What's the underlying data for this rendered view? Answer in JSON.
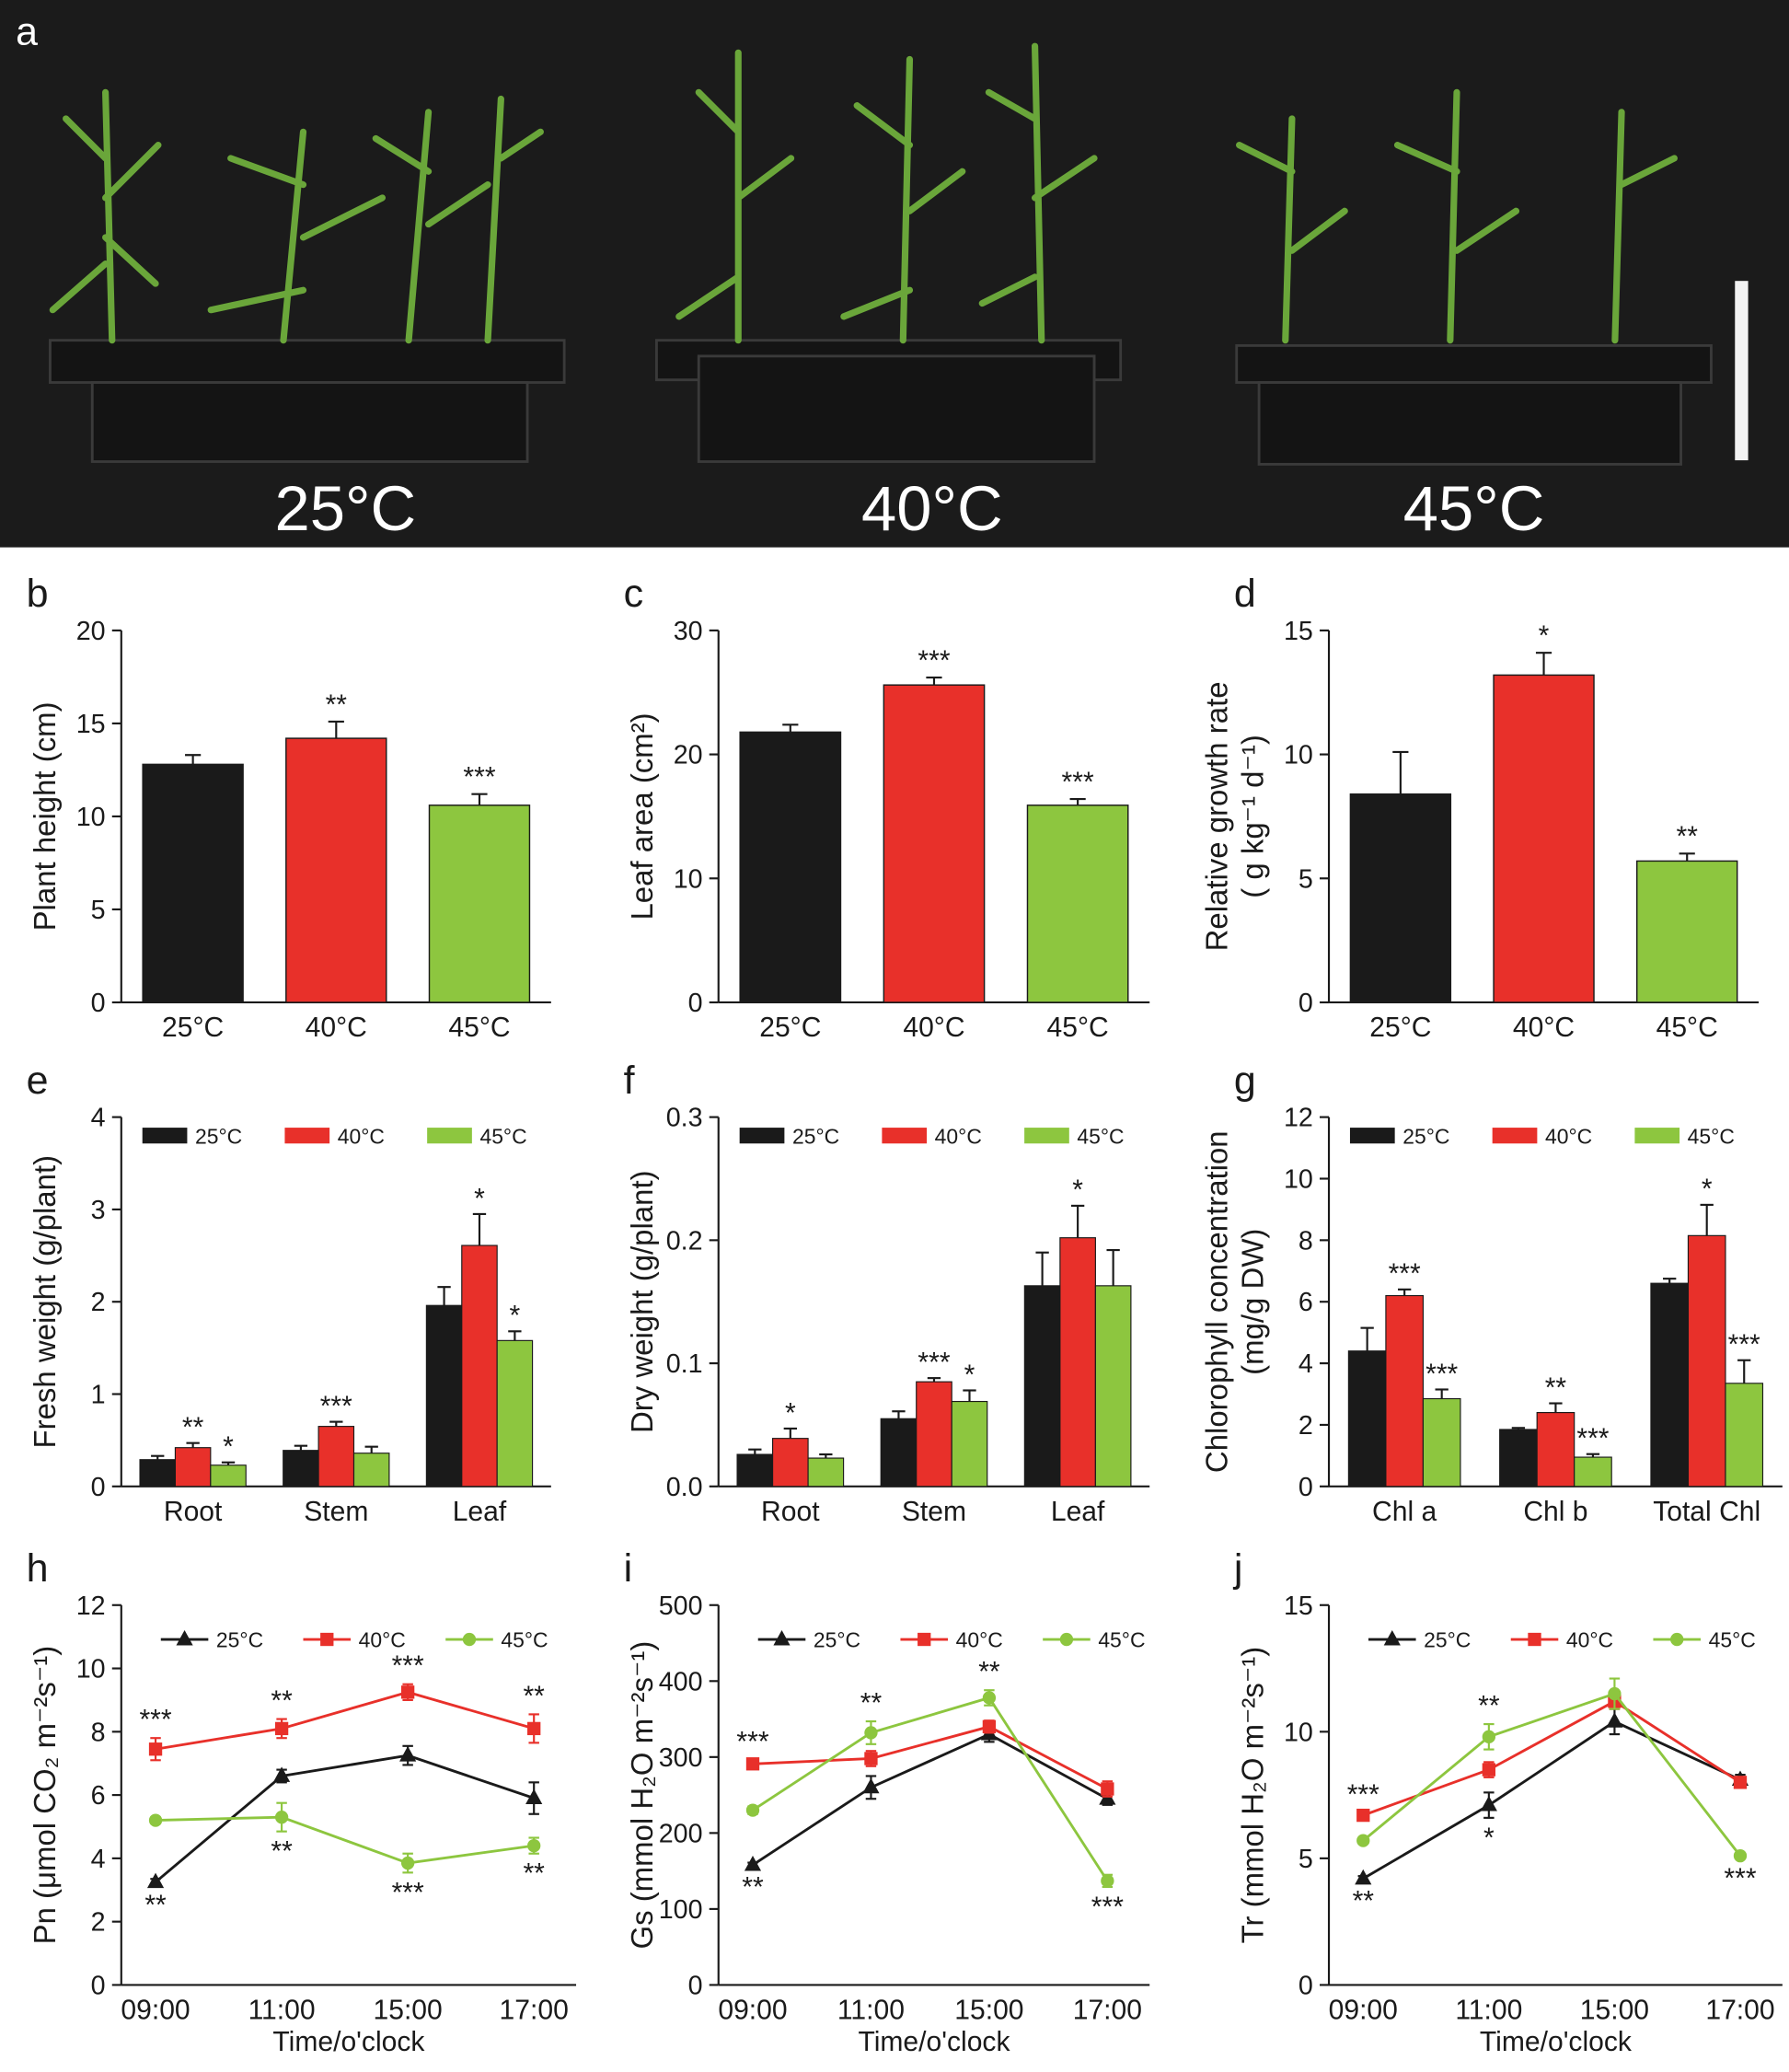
{
  "photo": {
    "label": "a",
    "labels": [
      "25°C",
      "40°C",
      "45°C"
    ]
  },
  "chart_data": [
    {
      "type": "bar",
      "panel": "b",
      "ylabel": "Plant height (cm)",
      "categories": [
        "25°C",
        "40°C",
        "45°C"
      ],
      "values": [
        12.8,
        14.2,
        10.6
      ],
      "errors": [
        0.5,
        0.9,
        0.6
      ],
      "annotations": [
        null,
        "**",
        "***"
      ],
      "colors": [
        "#1a1a1a",
        "#e8302a",
        "#8dc63f"
      ],
      "ylim": [
        0,
        20
      ],
      "yticks": [
        0,
        5,
        10,
        15,
        20
      ]
    },
    {
      "type": "bar",
      "panel": "c",
      "ylabel": "Leaf area (cm²)",
      "categories": [
        "25°C",
        "40°C",
        "45°C"
      ],
      "values": [
        21.8,
        25.6,
        15.9
      ],
      "errors": [
        0.6,
        0.6,
        0.5
      ],
      "annotations": [
        null,
        "***",
        "***"
      ],
      "colors": [
        "#1a1a1a",
        "#e8302a",
        "#8dc63f"
      ],
      "ylim": [
        0,
        30
      ],
      "yticks": [
        0,
        10,
        20,
        30
      ]
    },
    {
      "type": "bar",
      "panel": "d",
      "ylabel": [
        "Relative growth rate",
        "( g kg⁻¹ d⁻¹)"
      ],
      "categories": [
        "25°C",
        "40°C",
        "45°C"
      ],
      "values": [
        8.4,
        13.2,
        5.7
      ],
      "errors": [
        1.7,
        0.9,
        0.3
      ],
      "annotations": [
        null,
        "*",
        "**"
      ],
      "colors": [
        "#1a1a1a",
        "#e8302a",
        "#8dc63f"
      ],
      "ylim": [
        0,
        15
      ],
      "yticks": [
        0,
        5,
        10,
        15
      ]
    },
    {
      "type": "grouped_bar",
      "panel": "e",
      "ylabel": "Fresh weight (g/plant)",
      "categories": [
        "Root",
        "Stem",
        "Leaf"
      ],
      "legend": "top",
      "series": [
        {
          "name": "25°C",
          "color": "#1a1a1a",
          "values": [
            0.29,
            0.39,
            1.96
          ],
          "errors": [
            0.04,
            0.05,
            0.2
          ],
          "annotations": [
            null,
            null,
            null
          ]
        },
        {
          "name": "40°C",
          "color": "#e8302a",
          "values": [
            0.42,
            0.65,
            2.61
          ],
          "errors": [
            0.05,
            0.05,
            0.34
          ],
          "annotations": [
            "**",
            "***",
            "*"
          ]
        },
        {
          "name": "45°C",
          "color": "#8dc63f",
          "values": [
            0.23,
            0.36,
            1.58
          ],
          "errors": [
            0.03,
            0.07,
            0.1
          ],
          "annotations": [
            "*",
            null,
            "*"
          ]
        }
      ],
      "ylim": [
        0,
        4
      ],
      "yticks": [
        0,
        1,
        2,
        3,
        4
      ]
    },
    {
      "type": "grouped_bar",
      "panel": "f",
      "ylabel": "Dry weight (g/plant)",
      "categories": [
        "Root",
        "Stem",
        "Leaf"
      ],
      "legend": "top",
      "series": [
        {
          "name": "25°C",
          "color": "#1a1a1a",
          "values": [
            0.026,
            0.055,
            0.163
          ],
          "errors": [
            0.004,
            0.006,
            0.027
          ],
          "annotations": [
            null,
            null,
            null
          ]
        },
        {
          "name": "40°C",
          "color": "#e8302a",
          "values": [
            0.039,
            0.085,
            0.202
          ],
          "errors": [
            0.008,
            0.003,
            0.026
          ],
          "annotations": [
            "*",
            "***",
            "*"
          ]
        },
        {
          "name": "45°C",
          "color": "#8dc63f",
          "values": [
            0.023,
            0.069,
            0.163
          ],
          "errors": [
            0.003,
            0.009,
            0.029
          ],
          "annotations": [
            null,
            "*",
            null
          ]
        }
      ],
      "ylim": [
        0,
        0.3
      ],
      "yticks": [
        {
          "value": 0,
          "label": "0.0"
        },
        0.1,
        0.2,
        0.3
      ]
    },
    {
      "type": "grouped_bar",
      "panel": "g",
      "ylabel": [
        "Chlorophyll concentration",
        "(mg/g DW)"
      ],
      "categories": [
        "Chl a",
        "Chl b",
        "Total Chl"
      ],
      "legend": "top",
      "series": [
        {
          "name": "25°C",
          "color": "#1a1a1a",
          "values": [
            4.4,
            1.85,
            6.6
          ],
          "errors": [
            0.75,
            0.05,
            0.15
          ],
          "annotations": [
            null,
            null,
            null
          ]
        },
        {
          "name": "40°C",
          "color": "#e8302a",
          "values": [
            6.2,
            2.4,
            8.15
          ],
          "errors": [
            0.2,
            0.3,
            1.0
          ],
          "annotations": [
            "***",
            "**",
            "*"
          ]
        },
        {
          "name": "45°C",
          "color": "#8dc63f",
          "values": [
            2.85,
            0.95,
            3.35
          ],
          "errors": [
            0.3,
            0.1,
            0.75
          ],
          "annotations": [
            "***",
            "***",
            "***"
          ]
        }
      ],
      "ylim": [
        0,
        12
      ],
      "yticks": [
        0,
        2,
        4,
        6,
        8,
        10,
        12
      ]
    },
    {
      "type": "line",
      "panel": "h",
      "ylabel": "Pn (μmol CO₂ m⁻²s⁻¹)",
      "xlabel": "Time/o'clock",
      "categories": [
        "09:00",
        "11:00",
        "15:00",
        "17:00"
      ],
      "legend": "top",
      "series": [
        {
          "name": "25°C",
          "color": "#1a1a1a",
          "marker": "triangle",
          "values": [
            3.25,
            6.6,
            7.25,
            5.9
          ],
          "errors": [
            0.1,
            0.2,
            0.3,
            0.5
          ],
          "annotations": [
            "**",
            null,
            null,
            null
          ]
        },
        {
          "name": "40°C",
          "color": "#e8302a",
          "marker": "square",
          "values": [
            7.45,
            8.1,
            9.25,
            8.1
          ],
          "errors": [
            0.35,
            0.3,
            0.25,
            0.45
          ],
          "annotations": [
            "***",
            "**",
            "***",
            "**"
          ]
        },
        {
          "name": "45°C",
          "color": "#8dc63f",
          "marker": "circle",
          "values": [
            5.2,
            5.3,
            3.85,
            4.4
          ],
          "errors": [
            0.1,
            0.45,
            0.3,
            0.25
          ],
          "annotations": [
            null,
            "**",
            "***",
            "**"
          ]
        }
      ],
      "ylim": [
        0,
        12
      ],
      "yticks": [
        0,
        2,
        4,
        6,
        8,
        10,
        12
      ]
    },
    {
      "type": "line",
      "panel": "i",
      "ylabel": "Gs (mmol H₂O m⁻²s⁻¹)",
      "xlabel": "Time/o'clock",
      "categories": [
        "09:00",
        "11:00",
        "15:00",
        "17:00"
      ],
      "legend": "top",
      "series": [
        {
          "name": "25°C",
          "color": "#1a1a1a",
          "marker": "triangle",
          "values": [
            158,
            260,
            330,
            245
          ],
          "errors": [
            3,
            15,
            10,
            8
          ],
          "annotations": [
            "**",
            null,
            null,
            null
          ]
        },
        {
          "name": "40°C",
          "color": "#e8302a",
          "marker": "square",
          "values": [
            291,
            298,
            340,
            258
          ],
          "errors": [
            5,
            10,
            8,
            10
          ],
          "annotations": [
            "***",
            null,
            null,
            null
          ]
        },
        {
          "name": "45°C",
          "color": "#8dc63f",
          "marker": "circle",
          "values": [
            230,
            332,
            378,
            137
          ],
          "errors": [
            5,
            15,
            10,
            8
          ],
          "annotations": [
            null,
            "**",
            "**",
            "***"
          ]
        }
      ],
      "ylim": [
        0,
        500
      ],
      "yticks": [
        0,
        100,
        200,
        300,
        400,
        500
      ]
    },
    {
      "type": "line",
      "panel": "j",
      "ylabel": "Tr (mmol H₂O m⁻²s⁻¹)",
      "xlabel": "Time/o'clock",
      "categories": [
        "09:00",
        "11:00",
        "15:00",
        "17:00"
      ],
      "legend": "top",
      "series": [
        {
          "name": "25°C",
          "color": "#1a1a1a",
          "marker": "triangle",
          "values": [
            4.2,
            7.1,
            10.4,
            8.1
          ],
          "errors": [
            0.1,
            0.5,
            0.5,
            0.2
          ],
          "annotations": [
            "**",
            "*",
            null,
            null
          ]
        },
        {
          "name": "40°C",
          "color": "#e8302a",
          "marker": "square",
          "values": [
            6.7,
            8.5,
            11.2,
            8.0
          ],
          "errors": [
            0.1,
            0.3,
            0.3,
            0.2
          ],
          "annotations": [
            "***",
            null,
            null,
            null
          ]
        },
        {
          "name": "45°C",
          "color": "#8dc63f",
          "marker": "circle",
          "values": [
            5.7,
            9.8,
            11.5,
            5.1
          ],
          "errors": [
            0.1,
            0.5,
            0.6,
            0.1
          ],
          "annotations": [
            null,
            "**",
            null,
            "***"
          ]
        }
      ],
      "ylim": [
        0,
        15
      ],
      "yticks": [
        0,
        5,
        10,
        15
      ]
    }
  ]
}
